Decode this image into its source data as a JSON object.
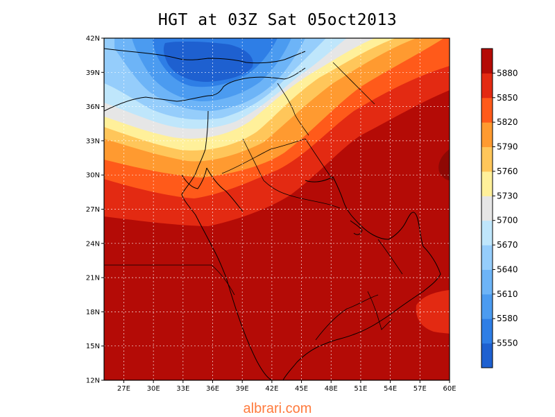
{
  "title": "HGT at 03Z Sat 05oct2013",
  "footer": {
    "text": "albrari.com",
    "color": "#ff7a3c"
  },
  "map": {
    "lon_range": [
      25,
      60
    ],
    "lat_range": [
      12,
      42
    ],
    "lat_ticks": [
      "12N",
      "15N",
      "18N",
      "21N",
      "24N",
      "27N",
      "30N",
      "33N",
      "36N",
      "39N",
      "42N"
    ],
    "lon_ticks": [
      "27E",
      "30E",
      "33E",
      "36E",
      "39E",
      "42E",
      "45E",
      "48E",
      "51E",
      "54E",
      "57E",
      "60E"
    ],
    "grid": true
  },
  "colorbar": {
    "labels": [
      "5550",
      "5580",
      "5610",
      "5640",
      "5670",
      "5700",
      "5730",
      "5760",
      "5790",
      "5820",
      "5850",
      "5880"
    ],
    "colors": [
      "#1e60d0",
      "#2e7ee6",
      "#4b9bf0",
      "#6db4f7",
      "#95cdfb",
      "#bfe6fb",
      "#e6e6e6",
      "#fff09a",
      "#ffc65a",
      "#ff9a30",
      "#ff5a1a",
      "#e32a12",
      "#b40b06"
    ]
  }
}
